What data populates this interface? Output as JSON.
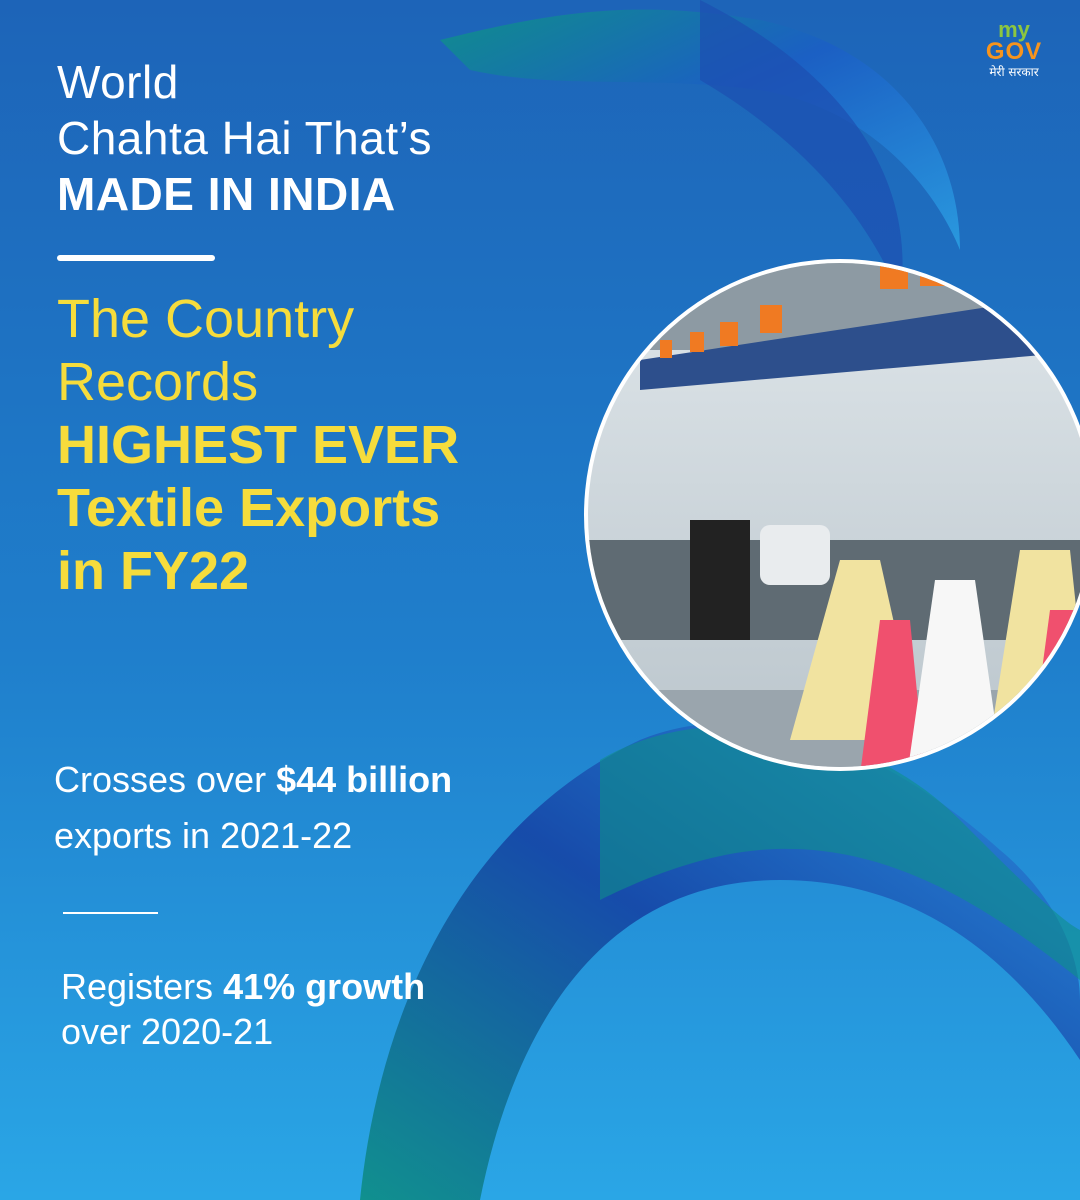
{
  "logo": {
    "top": "my",
    "bottom": "GOV",
    "tagline": "मेरी सरकार"
  },
  "headline": {
    "lines": [
      "World",
      "Chahta Hai That’s"
    ],
    "emphasis": "MADE IN INDIA"
  },
  "subhead": {
    "lines": [
      "The Country",
      "Records"
    ],
    "emphasis": [
      "HIGHEST EVER",
      "Textile Exports",
      "in FY22"
    ]
  },
  "stats": [
    {
      "text": "Crosses over",
      "emphasis": "$44 billion",
      "line2": "exports in 2021-22"
    },
    {
      "text": "Registers",
      "emphasis": "41% growth",
      "line2": "over 2020-21"
    }
  ]
}
